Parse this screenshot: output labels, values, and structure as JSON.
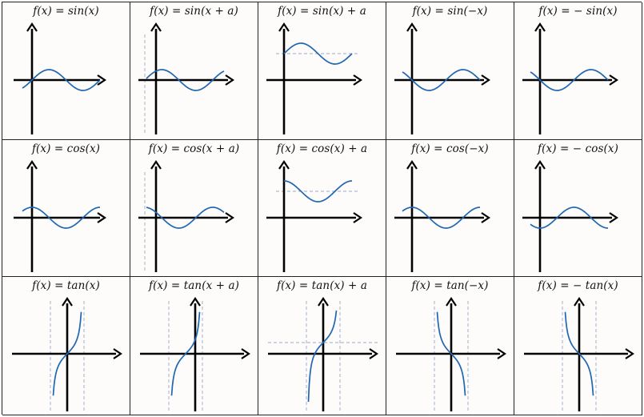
{
  "colors": {
    "curve": "#1f67b1",
    "axis": "#000000",
    "guide": "#9aa8c2"
  },
  "rows": [
    {
      "family": "sin",
      "cells": [
        {
          "label": "f(x) = sin(x)",
          "variant": "base"
        },
        {
          "label": "f(x) = sin(x + a)",
          "variant": "hshift"
        },
        {
          "label": "f(x) = sin(x) + a",
          "variant": "vshift"
        },
        {
          "label": "f(x) = sin(−x)",
          "variant": "xreflect"
        },
        {
          "label": "f(x) = − sin(x)",
          "variant": "yreflect"
        }
      ]
    },
    {
      "family": "cos",
      "cells": [
        {
          "label": "f(x) = cos(x)",
          "variant": "base"
        },
        {
          "label": "f(x) = cos(x + a)",
          "variant": "hshift"
        },
        {
          "label": "f(x) = cos(x) + a",
          "variant": "vshift"
        },
        {
          "label": "f(x) = cos(−x)",
          "variant": "xreflect"
        },
        {
          "label": "f(x) = − cos(x)",
          "variant": "yreflect"
        }
      ]
    },
    {
      "family": "tan",
      "cells": [
        {
          "label": "f(x) = tan(x)",
          "variant": "base"
        },
        {
          "label": "f(x) = tan(x + a)",
          "variant": "hshift"
        },
        {
          "label": "f(x) = tan(x) + a",
          "variant": "vshift"
        },
        {
          "label": "f(x) = tan(−x)",
          "variant": "xreflect"
        },
        {
          "label": "f(x) = − tan(x)",
          "variant": "yreflect"
        }
      ]
    }
  ]
}
